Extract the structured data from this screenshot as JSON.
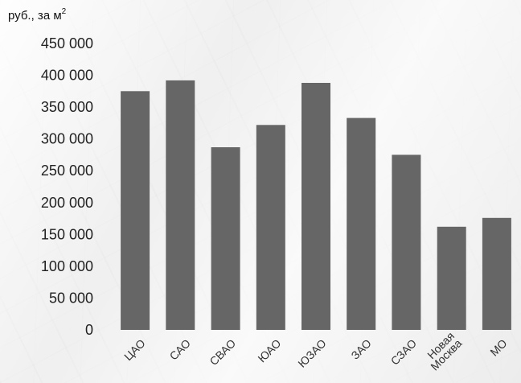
{
  "chart_data": {
    "type": "bar",
    "unit_label": "руб., за м",
    "unit_superscript": "2",
    "categories": [
      "ЦАО",
      "САО",
      "СВАО",
      "ЮАО",
      "ЮЗАО",
      "ЗАО",
      "СЗАО",
      "Новая Москва",
      "МО"
    ],
    "category_lines": [
      [
        "ЦАО"
      ],
      [
        "САО"
      ],
      [
        "СВАО"
      ],
      [
        "ЮАО"
      ],
      [
        "ЮЗАО"
      ],
      [
        "ЗАО"
      ],
      [
        "СЗАО"
      ],
      [
        "Новая",
        "Москва"
      ],
      [
        "МО"
      ]
    ],
    "values": [
      375000,
      392000,
      287000,
      322000,
      388000,
      333000,
      275000,
      162000,
      176000
    ],
    "ylim": [
      0,
      450000
    ],
    "yticks": [
      0,
      50000,
      100000,
      150000,
      200000,
      250000,
      300000,
      350000,
      400000,
      450000
    ],
    "ytick_labels": [
      "0",
      "50 000",
      "100 000",
      "150 000",
      "200 000",
      "250 000",
      "300 000",
      "350 000",
      "400 000",
      "450 000"
    ],
    "grid": false,
    "bar_color": "#666666"
  }
}
